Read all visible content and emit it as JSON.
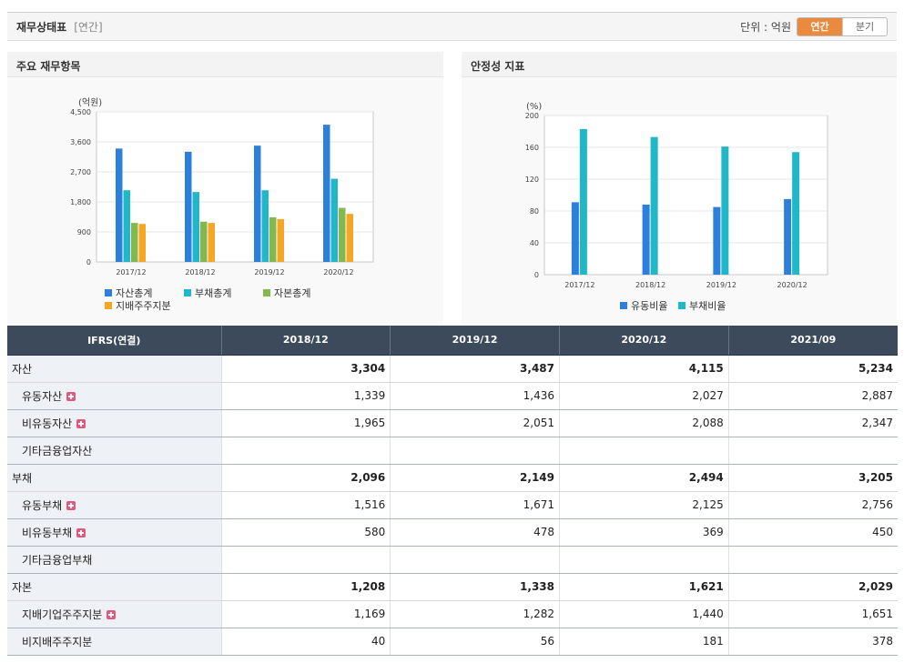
{
  "header": {
    "title": "재무상태표",
    "period_tag": "[연간]",
    "unit_label": "단위 : 억원",
    "toggle": [
      "연간",
      "분기"
    ]
  },
  "panels": {
    "left_title": "주요 재무항목",
    "right_title": "안정성 지표"
  },
  "chart_data": [
    {
      "type": "bar",
      "ylabel": "(억원)",
      "ylim": [
        0,
        4500
      ],
      "yticks": [
        0,
        900,
        1800,
        2700,
        3600,
        4500
      ],
      "ytick_labels": [
        "0",
        "900",
        "1,800",
        "2,700",
        "3,600",
        "4,500"
      ],
      "categories": [
        "2017/12",
        "2018/12",
        "2019/12",
        "2020/12"
      ],
      "legend_position": "bottom",
      "grid": true,
      "series": [
        {
          "name": "자산총계",
          "color": "#2c7fdb",
          "values": [
            3400,
            3304,
            3487,
            4115
          ]
        },
        {
          "name": "부채총계",
          "color": "#20b7c9",
          "values": [
            2150,
            2096,
            2149,
            2494
          ]
        },
        {
          "name": "자본총계",
          "color": "#84b84f",
          "values": [
            1170,
            1208,
            1338,
            1621
          ]
        },
        {
          "name": "지배주주지분",
          "color": "#f5a623",
          "values": [
            1140,
            1169,
            1282,
            1440
          ]
        }
      ]
    },
    {
      "type": "bar",
      "ylabel": "(%)",
      "ylim": [
        0,
        200
      ],
      "yticks": [
        0,
        40,
        80,
        120,
        160,
        200
      ],
      "ytick_labels": [
        "0",
        "40",
        "80",
        "120",
        "160",
        "200"
      ],
      "categories": [
        "2017/12",
        "2018/12",
        "2019/12",
        "2020/12"
      ],
      "legend_position": "bottom",
      "grid": true,
      "series": [
        {
          "name": "유동비율",
          "color": "#2c7fdb",
          "values": [
            91,
            88,
            85,
            95
          ]
        },
        {
          "name": "부채비율",
          "color": "#20b7c9",
          "values": [
            183,
            173,
            161,
            154
          ]
        }
      ]
    }
  ],
  "table": {
    "headers": [
      "IFRS(연결)",
      "2018/12",
      "2019/12",
      "2020/12",
      "2021/09"
    ],
    "rows": [
      {
        "label": "자산",
        "kind": "major",
        "values": [
          "3,304",
          "3,487",
          "4,115",
          "5,234"
        ]
      },
      {
        "label": "유동자산",
        "kind": "sub",
        "plus": true,
        "values": [
          "1,339",
          "1,436",
          "2,027",
          "2,887"
        ]
      },
      {
        "label": "비유동자산",
        "kind": "sub",
        "plus": true,
        "values": [
          "1,965",
          "2,051",
          "2,088",
          "2,347"
        ]
      },
      {
        "label": "기타금융업자산",
        "kind": "sub",
        "values": [
          "",
          "",
          "",
          ""
        ]
      },
      {
        "label": "부채",
        "kind": "major",
        "values": [
          "2,096",
          "2,149",
          "2,494",
          "3,205"
        ]
      },
      {
        "label": "유동부채",
        "kind": "sub",
        "plus": true,
        "values": [
          "1,516",
          "1,671",
          "2,125",
          "2,756"
        ]
      },
      {
        "label": "비유동부채",
        "kind": "sub",
        "plus": true,
        "values": [
          "580",
          "478",
          "369",
          "450"
        ]
      },
      {
        "label": "기타금융업부채",
        "kind": "sub",
        "values": [
          "",
          "",
          "",
          ""
        ]
      },
      {
        "label": "자본",
        "kind": "major",
        "values": [
          "1,208",
          "1,338",
          "1,621",
          "2,029"
        ]
      },
      {
        "label": "지배기업주주지분",
        "kind": "sub",
        "plus": true,
        "values": [
          "1,169",
          "1,282",
          "1,440",
          "1,651"
        ]
      },
      {
        "label": "비지배주주지분",
        "kind": "sub",
        "values": [
          "40",
          "56",
          "181",
          "378"
        ]
      }
    ]
  }
}
